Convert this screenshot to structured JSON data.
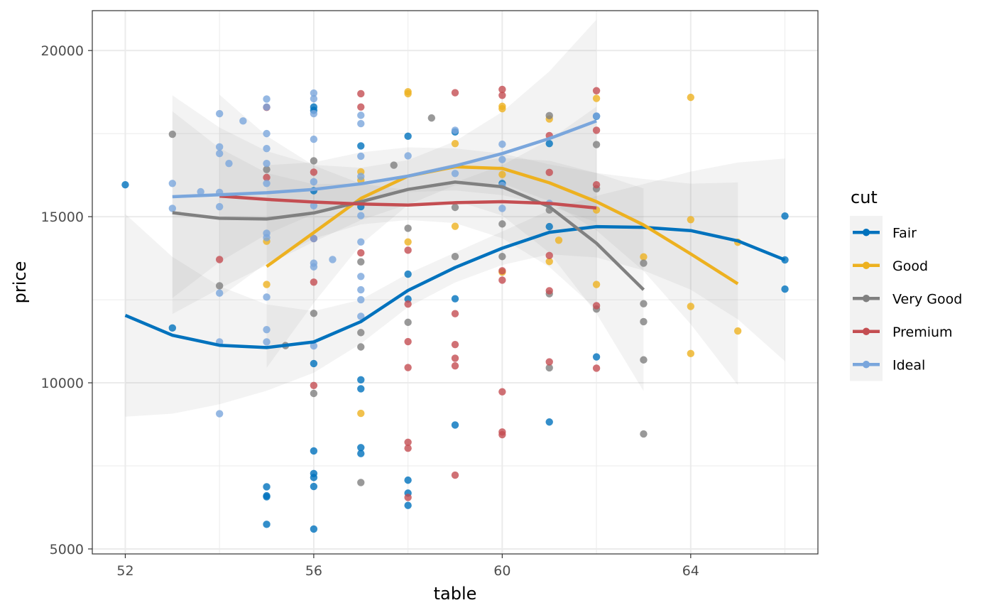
{
  "chart_data": {
    "type": "scatter",
    "xlabel": "table",
    "ylabel": "price",
    "xlim": [
      51.3,
      66.7
    ],
    "ylim": [
      4850,
      21200
    ],
    "x_ticks": [
      52,
      56,
      60,
      64
    ],
    "x_tick_labels": [
      "52",
      "56",
      "60",
      "64"
    ],
    "y_ticks": [
      5000,
      10000,
      15000,
      20000
    ],
    "y_tick_labels": [
      "5000",
      "10000",
      "15000",
      "20000"
    ],
    "grid": true,
    "legend": {
      "title": "cut",
      "placement": "right"
    },
    "series": [
      {
        "name": "Fair",
        "color": "#0072BD",
        "points": [
          [
            52,
            15960
          ],
          [
            53,
            11650
          ],
          [
            55,
            6870
          ],
          [
            55,
            6570
          ],
          [
            55,
            6600
          ],
          [
            55,
            5740
          ],
          [
            56,
            5600
          ],
          [
            56,
            6880
          ],
          [
            56,
            7150
          ],
          [
            56,
            7270
          ],
          [
            56,
            7950
          ],
          [
            56,
            10580
          ],
          [
            56,
            15780
          ],
          [
            56,
            18200
          ],
          [
            56,
            18300
          ],
          [
            57,
            10090
          ],
          [
            57,
            9820
          ],
          [
            57,
            8050
          ],
          [
            57,
            7870
          ],
          [
            57,
            15300
          ],
          [
            57,
            17130
          ],
          [
            58,
            12520
          ],
          [
            58,
            13270
          ],
          [
            58,
            17420
          ],
          [
            58,
            7070
          ],
          [
            58,
            6680
          ],
          [
            58,
            6310
          ],
          [
            59,
            8730
          ],
          [
            59,
            12530
          ],
          [
            59,
            17550
          ],
          [
            60,
            16000
          ],
          [
            61,
            8820
          ],
          [
            61,
            14700
          ],
          [
            61,
            17200
          ],
          [
            62,
            10780
          ],
          [
            62,
            18020
          ],
          [
            66,
            15020
          ],
          [
            66,
            13700
          ],
          [
            66,
            12820
          ]
        ],
        "smooth": [
          [
            52,
            12030
          ],
          [
            53,
            11430
          ],
          [
            54,
            11130
          ],
          [
            55,
            11060
          ],
          [
            56,
            11230
          ],
          [
            57,
            11840
          ],
          [
            58,
            12780
          ],
          [
            59,
            13470
          ],
          [
            60,
            14050
          ],
          [
            61,
            14530
          ],
          [
            62,
            14700
          ],
          [
            63,
            14680
          ],
          [
            64,
            14580
          ],
          [
            65,
            14270
          ],
          [
            66,
            13700
          ]
        ]
      },
      {
        "name": "Good",
        "color": "#EDB120",
        "points": [
          [
            55,
            12960
          ],
          [
            55,
            14260
          ],
          [
            57,
            9080
          ],
          [
            57,
            16100
          ],
          [
            57,
            16350
          ],
          [
            58,
            18760
          ],
          [
            58,
            18700
          ],
          [
            58,
            14240
          ],
          [
            59,
            14710
          ],
          [
            59,
            17200
          ],
          [
            60,
            16270
          ],
          [
            60,
            18250
          ],
          [
            60,
            18320
          ],
          [
            60,
            13330
          ],
          [
            61,
            17940
          ],
          [
            61,
            13650
          ],
          [
            61.2,
            14290
          ],
          [
            62,
            18560
          ],
          [
            62,
            15200
          ],
          [
            62,
            12960
          ],
          [
            63,
            13790
          ],
          [
            64,
            18590
          ],
          [
            64,
            14910
          ],
          [
            64,
            12300
          ],
          [
            64,
            10880
          ],
          [
            65,
            14230
          ],
          [
            65,
            11560
          ]
        ],
        "smooth": [
          [
            55,
            13500
          ],
          [
            56,
            14520
          ],
          [
            57,
            15550
          ],
          [
            58,
            16220
          ],
          [
            59,
            16500
          ],
          [
            60,
            16450
          ],
          [
            61,
            16020
          ],
          [
            62,
            15450
          ],
          [
            63,
            14750
          ],
          [
            64,
            13880
          ],
          [
            65,
            12980
          ]
        ]
      },
      {
        "name": "Very Good",
        "color": "#808080",
        "points": [
          [
            53,
            17480
          ],
          [
            54,
            12920
          ],
          [
            55,
            16420
          ],
          [
            55.4,
            11120
          ],
          [
            56,
            12090
          ],
          [
            56,
            9680
          ],
          [
            56,
            16680
          ],
          [
            57,
            11510
          ],
          [
            57,
            11080
          ],
          [
            57,
            7000
          ],
          [
            57,
            13640
          ],
          [
            57.7,
            16550
          ],
          [
            58,
            14650
          ],
          [
            58,
            11820
          ],
          [
            58.5,
            17970
          ],
          [
            59,
            13800
          ],
          [
            59,
            15280
          ],
          [
            60,
            13800
          ],
          [
            60,
            14780
          ],
          [
            61,
            10450
          ],
          [
            61,
            12680
          ],
          [
            61,
            18040
          ],
          [
            61,
            15200
          ],
          [
            62,
            17170
          ],
          [
            62,
            15840
          ],
          [
            62,
            12220
          ],
          [
            63,
            13600
          ],
          [
            63,
            12380
          ],
          [
            63,
            11840
          ],
          [
            63,
            10690
          ],
          [
            63,
            8460
          ]
        ],
        "smooth": [
          [
            53,
            15120
          ],
          [
            54,
            14950
          ],
          [
            55,
            14930
          ],
          [
            56,
            15110
          ],
          [
            57,
            15450
          ],
          [
            58,
            15820
          ],
          [
            59,
            16040
          ],
          [
            60,
            15900
          ],
          [
            61,
            15300
          ],
          [
            62,
            14200
          ],
          [
            63,
            12800
          ]
        ]
      },
      {
        "name": "Premium",
        "color": "#C44E52",
        "points": [
          [
            54,
            13710
          ],
          [
            55,
            16180
          ],
          [
            55,
            18290
          ],
          [
            56,
            9920
          ],
          [
            56,
            13030
          ],
          [
            56,
            14340
          ],
          [
            56,
            16340
          ],
          [
            57,
            18700
          ],
          [
            57,
            18300
          ],
          [
            57,
            13910
          ],
          [
            58,
            11240
          ],
          [
            58,
            10460
          ],
          [
            58,
            8210
          ],
          [
            58,
            8030
          ],
          [
            58,
            6550
          ],
          [
            58,
            12370
          ],
          [
            58,
            13990
          ],
          [
            59,
            12080
          ],
          [
            59,
            11150
          ],
          [
            59,
            10740
          ],
          [
            59,
            10510
          ],
          [
            59,
            7220
          ],
          [
            59,
            18730
          ],
          [
            60,
            18830
          ],
          [
            60,
            18650
          ],
          [
            60,
            9730
          ],
          [
            60,
            8520
          ],
          [
            60,
            8440
          ],
          [
            60,
            13090
          ],
          [
            60,
            13370
          ],
          [
            61,
            12770
          ],
          [
            61,
            10630
          ],
          [
            61,
            13830
          ],
          [
            61,
            16330
          ],
          [
            61,
            17440
          ],
          [
            62,
            18790
          ],
          [
            62,
            17600
          ],
          [
            62,
            12320
          ],
          [
            62,
            10440
          ],
          [
            62,
            15960
          ]
        ],
        "smooth": [
          [
            54,
            15620
          ],
          [
            55,
            15520
          ],
          [
            56,
            15440
          ],
          [
            57,
            15380
          ],
          [
            58,
            15350
          ],
          [
            59,
            15420
          ],
          [
            60,
            15450
          ],
          [
            61,
            15400
          ],
          [
            62,
            15260
          ]
        ]
      },
      {
        "name": "Ideal",
        "color": "#7AA6DC",
        "points": [
          [
            53,
            16000
          ],
          [
            53,
            15250
          ],
          [
            53.6,
            15750
          ],
          [
            54,
            18100
          ],
          [
            54,
            17100
          ],
          [
            54,
            16900
          ],
          [
            54,
            15730
          ],
          [
            54,
            15300
          ],
          [
            54,
            12700
          ],
          [
            54,
            11230
          ],
          [
            54,
            9070
          ],
          [
            54.2,
            16600
          ],
          [
            54.5,
            17880
          ],
          [
            55,
            18540
          ],
          [
            55,
            18300
          ],
          [
            55,
            17500
          ],
          [
            55,
            17050
          ],
          [
            55,
            16600
          ],
          [
            55,
            16000
          ],
          [
            55,
            14500
          ],
          [
            55,
            14370
          ],
          [
            55,
            12580
          ],
          [
            55,
            11600
          ],
          [
            55,
            11230
          ],
          [
            56,
            18720
          ],
          [
            56,
            18550
          ],
          [
            56,
            18100
          ],
          [
            56,
            17330
          ],
          [
            56,
            16050
          ],
          [
            56,
            15330
          ],
          [
            56,
            14340
          ],
          [
            56,
            13490
          ],
          [
            56,
            13600
          ],
          [
            56,
            11110
          ],
          [
            56.4,
            13710
          ],
          [
            57,
            18050
          ],
          [
            57,
            17800
          ],
          [
            57,
            16820
          ],
          [
            57,
            16210
          ],
          [
            57,
            15030
          ],
          [
            57,
            14240
          ],
          [
            57,
            13200
          ],
          [
            57,
            12800
          ],
          [
            57,
            12500
          ],
          [
            57,
            12000
          ],
          [
            58,
            16830
          ],
          [
            59,
            17600
          ],
          [
            59,
            16300
          ],
          [
            60,
            17180
          ],
          [
            60,
            16720
          ],
          [
            60,
            15940
          ],
          [
            60,
            15250
          ],
          [
            61,
            15400
          ],
          [
            62,
            18030
          ]
        ],
        "smooth": [
          [
            53,
            15600
          ],
          [
            54,
            15660
          ],
          [
            55,
            15720
          ],
          [
            56,
            15820
          ],
          [
            57,
            15990
          ],
          [
            58,
            16220
          ],
          [
            59,
            16530
          ],
          [
            60,
            16900
          ],
          [
            61,
            17350
          ],
          [
            62,
            17880
          ]
        ]
      }
    ]
  }
}
